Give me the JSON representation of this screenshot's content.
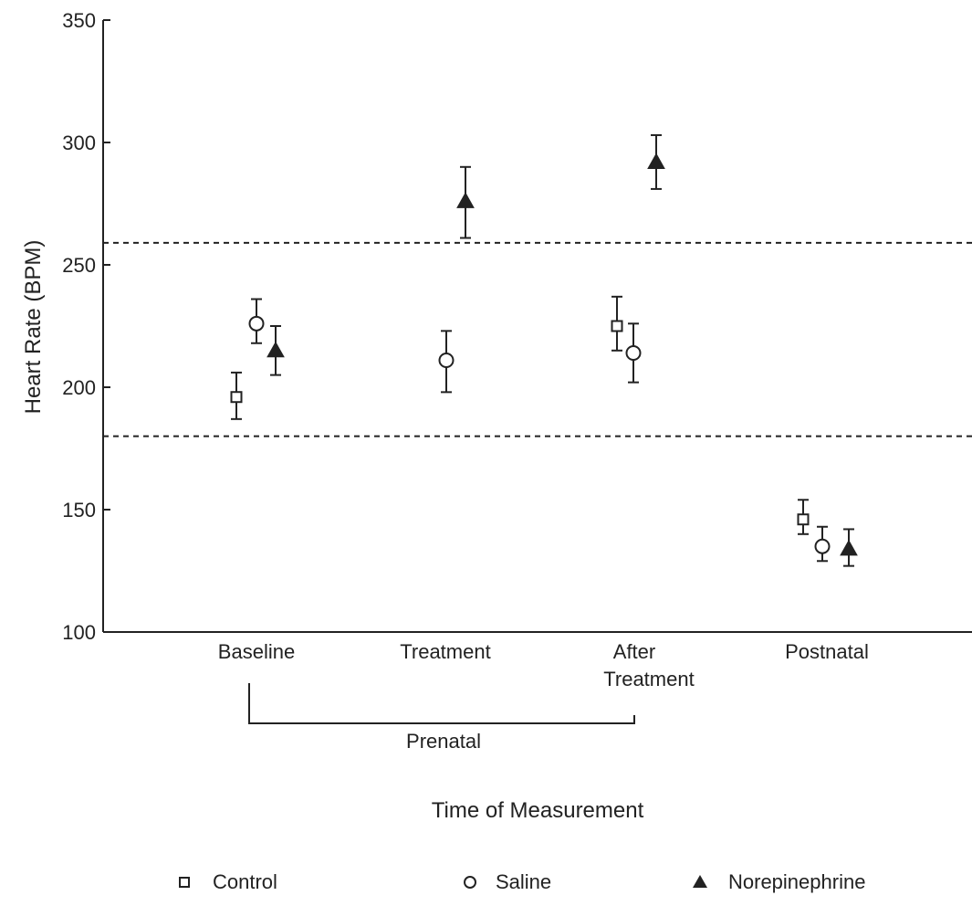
{
  "chart_data": {
    "type": "scatter",
    "title": "",
    "xlabel": "Time of Measurement",
    "ylabel": "Heart Rate (BPM)",
    "ylim": [
      100,
      350
    ],
    "yticks": [
      100,
      150,
      200,
      250,
      300,
      350
    ],
    "categories": [
      "Baseline",
      "Treatment",
      "After\nTreatment",
      "Postnatal"
    ],
    "group_label": "Prenatal",
    "reference_lines": [
      259,
      180
    ],
    "grid": false,
    "legend_position": "bottom",
    "series": [
      {
        "name": "Control",
        "marker": "square-open",
        "color": "#222222",
        "points": [
          {
            "category": "Baseline",
            "value": 196,
            "error_low": 187,
            "error_high": 206
          },
          {
            "category": "After\nTreatment",
            "value": 225,
            "error_low": 215,
            "error_high": 237
          },
          {
            "category": "Postnatal",
            "value": 146,
            "error_low": 140,
            "error_high": 154
          }
        ]
      },
      {
        "name": "Saline",
        "marker": "circle-open",
        "color": "#222222",
        "points": [
          {
            "category": "Baseline",
            "value": 226,
            "error_low": 218,
            "error_high": 236
          },
          {
            "category": "Treatment",
            "value": 211,
            "error_low": 198,
            "error_high": 223
          },
          {
            "category": "After\nTreatment",
            "value": 214,
            "error_low": 202,
            "error_high": 226
          },
          {
            "category": "Postnatal",
            "value": 135,
            "error_low": 129,
            "error_high": 143
          }
        ]
      },
      {
        "name": "Norepinephrine",
        "marker": "triangle-filled",
        "color": "#222222",
        "points": [
          {
            "category": "Baseline",
            "value": 215,
            "error_low": 205,
            "error_high": 225
          },
          {
            "category": "Treatment",
            "value": 276,
            "error_low": 261,
            "error_high": 290
          },
          {
            "category": "After\nTreatment",
            "value": 292,
            "error_low": 281,
            "error_high": 303
          },
          {
            "category": "Postnatal",
            "value": 134,
            "error_low": 127,
            "error_high": 142
          }
        ]
      }
    ]
  }
}
